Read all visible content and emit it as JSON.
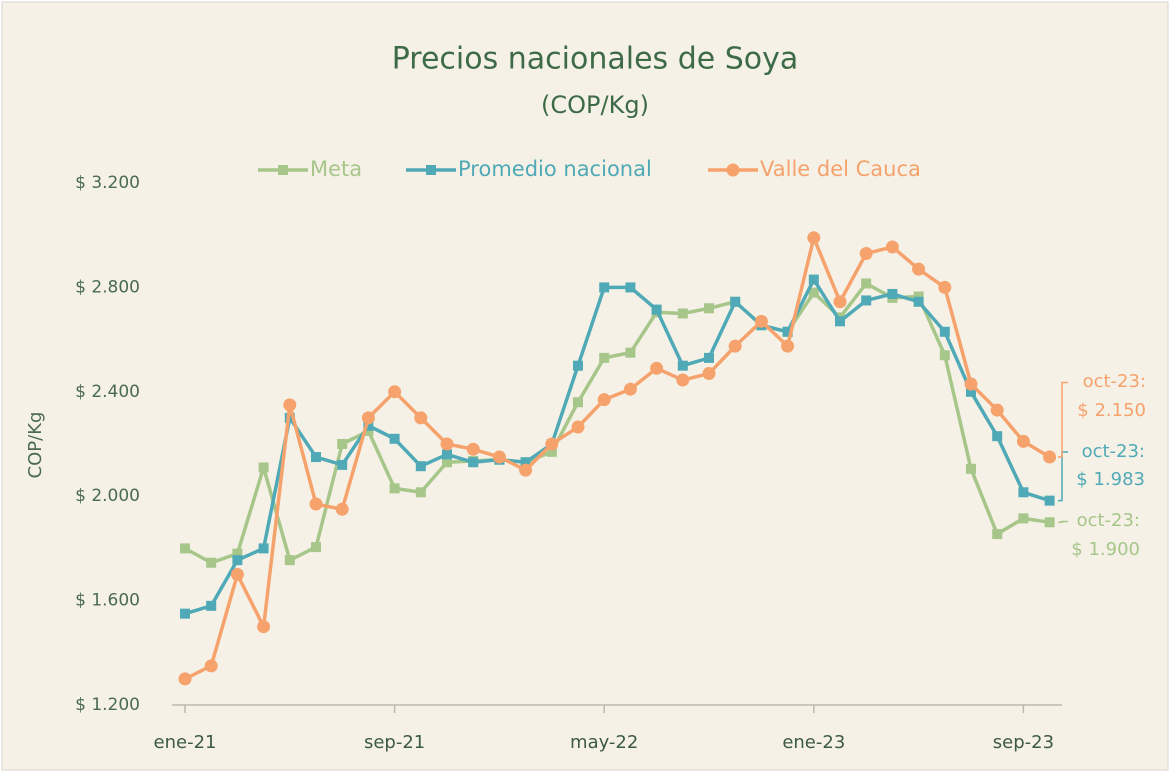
{
  "chart_data": {
    "type": "line",
    "title": "Precios nacionales de Soya",
    "subtitle": "(COP/Kg)",
    "y_label": "COP/Kg",
    "categories": [
      "ene-21",
      null,
      null,
      null,
      null,
      null,
      null,
      null,
      "sep-21",
      null,
      null,
      null,
      null,
      null,
      null,
      null,
      "may-22",
      null,
      null,
      null,
      null,
      null,
      null,
      null,
      "ene-23",
      null,
      null,
      null,
      null,
      null,
      null,
      null,
      "sep-23",
      null
    ],
    "ylim": [
      1200,
      3200
    ],
    "yticks": [
      {
        "value": 1200,
        "label": "$ 1.200"
      },
      {
        "value": 1600,
        "label": "$ 1.600"
      },
      {
        "value": 2000,
        "label": "$ 2.000"
      },
      {
        "value": 2400,
        "label": "$ 2.400"
      },
      {
        "value": 2800,
        "label": "$ 2.800"
      },
      {
        "value": 3200,
        "label": "$ 3.200"
      }
    ],
    "grid": false,
    "legend": "top",
    "series": [
      {
        "name": "Meta",
        "color": "#a6c68a",
        "marker": "square",
        "values": [
          1800,
          1745,
          1780,
          2110,
          1755,
          1805,
          2200,
          2250,
          2030,
          2015,
          2130,
          2135,
          2140,
          2130,
          2170,
          2360,
          2530,
          2550,
          2705,
          2700,
          2720,
          2745,
          2655,
          2630,
          2780,
          2685,
          2815,
          2760,
          2765,
          2540,
          2105,
          1855,
          1915,
          1900
        ],
        "end_label": {
          "date": "oct-23:",
          "value": "$ 1.900"
        }
      },
      {
        "name": "Promedio nacional",
        "color": "#4fa9b6",
        "marker": "square",
        "values": [
          1550,
          1580,
          1755,
          1800,
          2300,
          2150,
          2120,
          2270,
          2220,
          2115,
          2160,
          2130,
          2140,
          2130,
          2200,
          2500,
          2800,
          2800,
          2715,
          2500,
          2530,
          2745,
          2655,
          2630,
          2830,
          2670,
          2750,
          2775,
          2745,
          2630,
          2400,
          2230,
          2015,
          1983
        ],
        "end_label": {
          "date": "oct-23:",
          "value": "$ 1.983"
        }
      },
      {
        "name": "Valle del Cauca",
        "color": "#f5a26c",
        "marker": "circle",
        "values": [
          1300,
          1350,
          1700,
          1500,
          2350,
          1970,
          1950,
          2300,
          2400,
          2300,
          2200,
          2180,
          2150,
          2100,
          2200,
          2265,
          2370,
          2410,
          2490,
          2445,
          2470,
          2575,
          2670,
          2575,
          2990,
          2745,
          2930,
          2955,
          2870,
          2800,
          2430,
          2330,
          2210,
          2150
        ],
        "end_label": {
          "date": "oct-23:",
          "value": "$ 2.150"
        }
      }
    ]
  }
}
